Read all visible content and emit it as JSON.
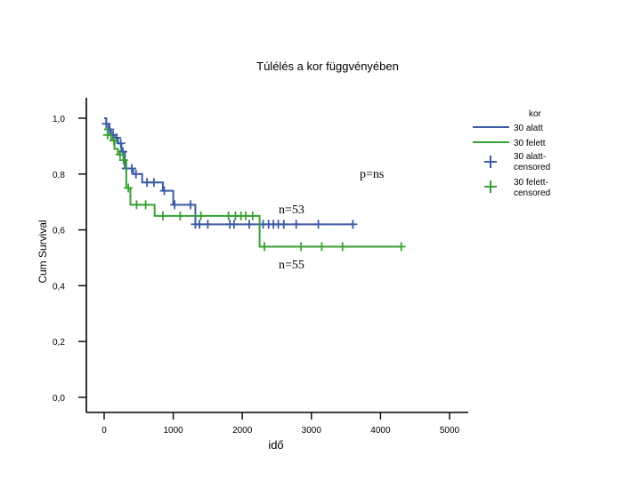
{
  "chart_data": {
    "type": "line",
    "title": "Túlélés a kor függvényében",
    "xlabel": "idő",
    "ylabel": "Cum Survival",
    "xlim": [
      0,
      5000
    ],
    "ylim": [
      0,
      1.0
    ],
    "x_ticks": [
      {
        "value": 0,
        "label": "0"
      },
      {
        "value": 1000,
        "label": "1000"
      },
      {
        "value": 2000,
        "label": "2000"
      },
      {
        "value": 3000,
        "label": "3000"
      },
      {
        "value": 4000,
        "label": "4000"
      },
      {
        "value": 5000,
        "label": "5000"
      }
    ],
    "y_ticks": [
      {
        "value": 0.0,
        "label": "0,0"
      },
      {
        "value": 0.2,
        "label": "0,2"
      },
      {
        "value": 0.4,
        "label": "0,4"
      },
      {
        "value": 0.6,
        "label": "0,6"
      },
      {
        "value": 0.8,
        "label": "0,8"
      },
      {
        "value": 1.0,
        "label": "1,0"
      }
    ],
    "legend": {
      "title": "kor",
      "placement": "top-right",
      "entries": [
        "30 alatt",
        "30 felett",
        "30 alatt-censored",
        "30 felett-censored"
      ]
    },
    "annotations": [
      "p=ns",
      "n=53",
      "n=55"
    ],
    "grid": false,
    "series": [
      {
        "name": "30 alatt",
        "color": "#3b5ba5",
        "steps": [
          [
            0,
            1.0
          ],
          [
            30,
            0.98
          ],
          [
            60,
            0.96
          ],
          [
            100,
            0.94
          ],
          [
            150,
            0.93
          ],
          [
            200,
            0.91
          ],
          [
            250,
            0.88
          ],
          [
            300,
            0.82
          ],
          [
            420,
            0.8
          ],
          [
            550,
            0.77
          ],
          [
            850,
            0.74
          ],
          [
            1000,
            0.69
          ],
          [
            1320,
            0.62
          ],
          [
            2300,
            0.62
          ]
        ],
        "end_x": 3600,
        "censored": [
          30,
          80,
          130,
          180,
          240,
          270,
          320,
          400,
          460,
          620,
          720,
          870,
          1020,
          1250,
          1320,
          1380,
          1500,
          1820,
          1880,
          2100,
          2300,
          2380,
          2450,
          2520,
          2600,
          2780,
          3100,
          3600
        ]
      },
      {
        "name": "30 felett",
        "color": "#38a035",
        "steps": [
          [
            0,
            0.96
          ],
          [
            50,
            0.94
          ],
          [
            100,
            0.92
          ],
          [
            150,
            0.89
          ],
          [
            200,
            0.87
          ],
          [
            280,
            0.85
          ],
          [
            320,
            0.75
          ],
          [
            380,
            0.69
          ],
          [
            730,
            0.65
          ],
          [
            2250,
            0.54
          ]
        ],
        "end_x": 4300,
        "censored": [
          50,
          140,
          230,
          280,
          350,
          470,
          600,
          850,
          1100,
          1400,
          1800,
          1900,
          1980,
          2050,
          2150,
          2320,
          2850,
          3150,
          3450,
          4300
        ]
      }
    ]
  }
}
